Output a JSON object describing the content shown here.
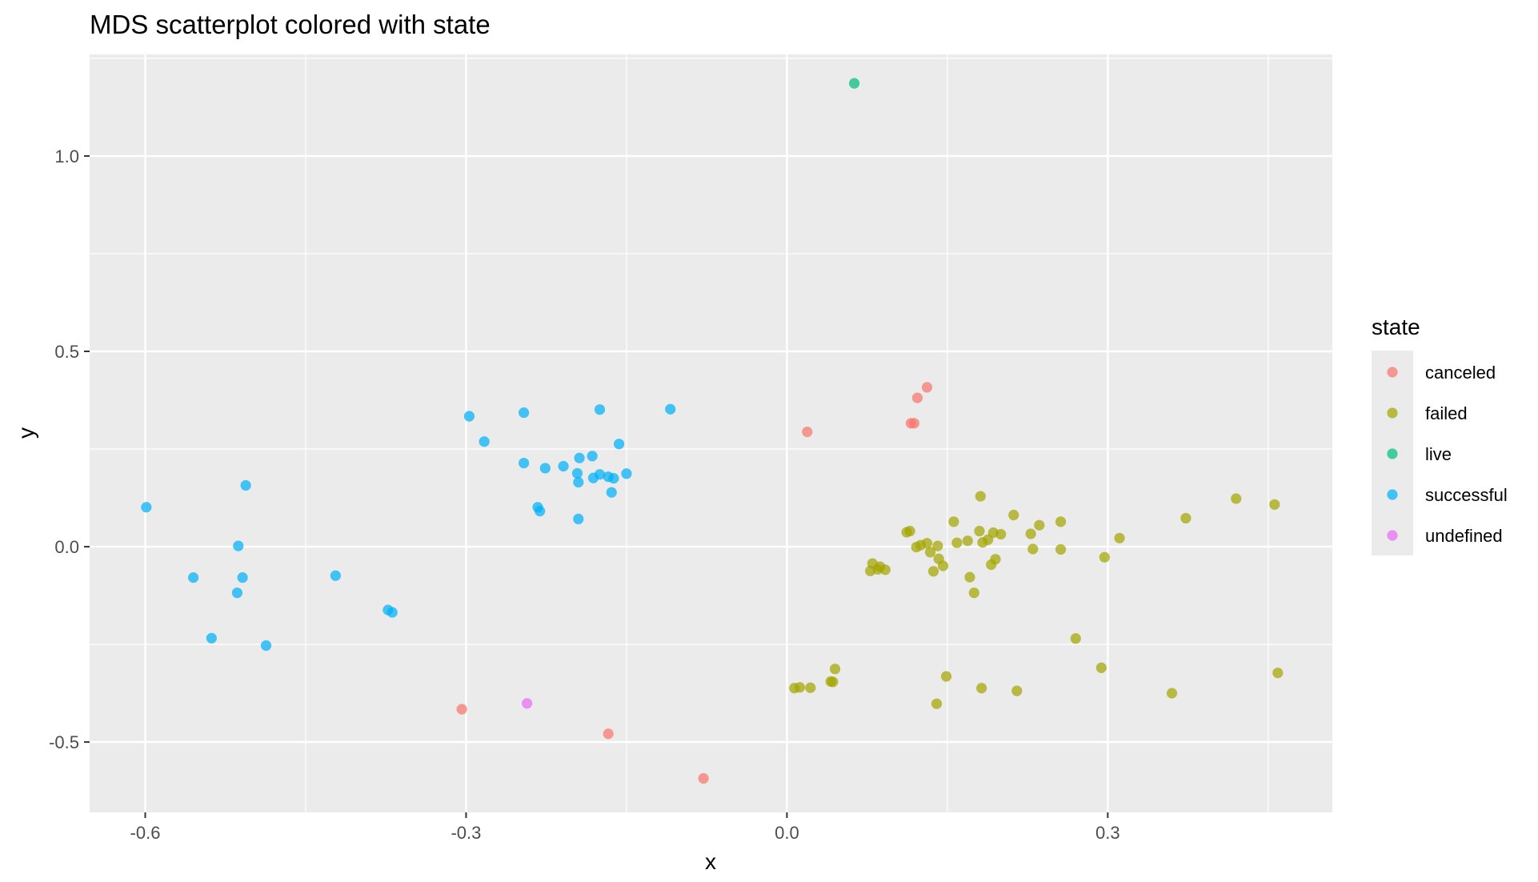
{
  "chart_data": {
    "type": "scatter",
    "title": "MDS scatterplot colored with state",
    "xlabel": "x",
    "ylabel": "y",
    "xlim": [
      -0.652,
      0.51
    ],
    "ylim": [
      -0.68,
      1.26
    ],
    "x_ticks": [
      {
        "value": -0.6,
        "label": "-0.6"
      },
      {
        "value": -0.3,
        "label": "-0.3"
      },
      {
        "value": 0.0,
        "label": "0.0"
      },
      {
        "value": 0.3,
        "label": "0.3"
      }
    ],
    "y_ticks": [
      {
        "value": -0.5,
        "label": "-0.5"
      },
      {
        "value": 0.0,
        "label": "0.0"
      },
      {
        "value": 0.5,
        "label": "0.5"
      },
      {
        "value": 1.0,
        "label": "1.0"
      }
    ],
    "grid": true,
    "legend": {
      "title": "state",
      "placement": "right",
      "entries": [
        {
          "name": "canceled",
          "color": "#F8766D"
        },
        {
          "name": "failed",
          "color": "#A3A500"
        },
        {
          "name": "live",
          "color": "#00BF7D"
        },
        {
          "name": "successful",
          "color": "#00B0F6"
        },
        {
          "name": "undefined",
          "color": "#E76BF3"
        }
      ]
    },
    "series": [
      {
        "name": "canceled",
        "points": [
          [
            0.131,
            0.408
          ],
          [
            0.122,
            0.381
          ],
          [
            0.116,
            0.316
          ],
          [
            0.119,
            0.316
          ],
          [
            0.019,
            0.294
          ],
          [
            -0.304,
            -0.416
          ],
          [
            -0.167,
            -0.479
          ],
          [
            -0.078,
            -0.593
          ]
        ]
      },
      {
        "name": "failed",
        "points": [
          [
            0.112,
            0.037
          ],
          [
            0.115,
            0.04
          ],
          [
            0.121,
            -0.001
          ],
          [
            0.125,
            0.004
          ],
          [
            0.131,
            0.009
          ],
          [
            0.134,
            -0.014
          ],
          [
            0.141,
            0.002
          ],
          [
            0.142,
            -0.031
          ],
          [
            0.146,
            -0.049
          ],
          [
            0.156,
            0.064
          ],
          [
            0.159,
            0.01
          ],
          [
            0.169,
            0.015
          ],
          [
            0.171,
            -0.078
          ],
          [
            0.175,
            -0.118
          ],
          [
            0.18,
            0.04
          ],
          [
            0.181,
            0.129
          ],
          [
            0.183,
            0.011
          ],
          [
            0.188,
            0.018
          ],
          [
            0.191,
            -0.046
          ],
          [
            0.193,
            0.036
          ],
          [
            0.195,
            -0.032
          ],
          [
            0.2,
            0.032
          ],
          [
            0.212,
            0.081
          ],
          [
            0.228,
            0.033
          ],
          [
            0.23,
            -0.006
          ],
          [
            0.236,
            0.055
          ],
          [
            0.256,
            -0.007
          ],
          [
            0.256,
            0.064
          ],
          [
            0.27,
            -0.235
          ],
          [
            0.297,
            -0.027
          ],
          [
            0.311,
            0.022
          ],
          [
            0.373,
            0.073
          ],
          [
            0.42,
            0.123
          ],
          [
            0.456,
            0.108
          ],
          [
            0.459,
            -0.323
          ],
          [
            0.078,
            -0.062
          ],
          [
            0.08,
            -0.043
          ],
          [
            0.085,
            -0.058
          ],
          [
            0.087,
            -0.051
          ],
          [
            0.092,
            -0.059
          ],
          [
            0.137,
            -0.063
          ],
          [
            0.007,
            -0.362
          ],
          [
            0.012,
            -0.36
          ],
          [
            0.022,
            -0.361
          ],
          [
            0.041,
            -0.345
          ],
          [
            0.043,
            -0.346
          ],
          [
            0.045,
            -0.313
          ],
          [
            0.14,
            -0.402
          ],
          [
            0.149,
            -0.332
          ],
          [
            0.182,
            -0.362
          ],
          [
            0.215,
            -0.369
          ],
          [
            0.294,
            -0.31
          ],
          [
            0.36,
            -0.375
          ]
        ]
      },
      {
        "name": "live",
        "points": [
          [
            0.063,
            1.186
          ]
        ]
      },
      {
        "name": "successful",
        "points": [
          [
            -0.599,
            0.101
          ],
          [
            -0.506,
            0.157
          ],
          [
            -0.513,
            0.002
          ],
          [
            -0.555,
            -0.079
          ],
          [
            -0.509,
            -0.079
          ],
          [
            -0.514,
            -0.118
          ],
          [
            -0.538,
            -0.234
          ],
          [
            -0.487,
            -0.253
          ],
          [
            -0.422,
            -0.074
          ],
          [
            -0.373,
            -0.162
          ],
          [
            -0.369,
            -0.168
          ],
          [
            -0.297,
            0.334
          ],
          [
            -0.283,
            0.269
          ],
          [
            -0.246,
            0.343
          ],
          [
            -0.246,
            0.214
          ],
          [
            -0.226,
            0.201
          ],
          [
            -0.209,
            0.206
          ],
          [
            -0.233,
            0.101
          ],
          [
            -0.231,
            0.091
          ],
          [
            -0.196,
            0.188
          ],
          [
            -0.195,
            0.165
          ],
          [
            -0.194,
            0.227
          ],
          [
            -0.182,
            0.232
          ],
          [
            -0.181,
            0.176
          ],
          [
            -0.175,
            0.185
          ],
          [
            -0.175,
            0.351
          ],
          [
            -0.167,
            0.179
          ],
          [
            -0.162,
            0.175
          ],
          [
            -0.157,
            0.263
          ],
          [
            -0.15,
            0.187
          ],
          [
            -0.164,
            0.139
          ],
          [
            -0.195,
            0.071
          ],
          [
            -0.109,
            0.352
          ]
        ]
      },
      {
        "name": "undefined",
        "points": [
          [
            -0.243,
            -0.401
          ]
        ]
      }
    ]
  }
}
